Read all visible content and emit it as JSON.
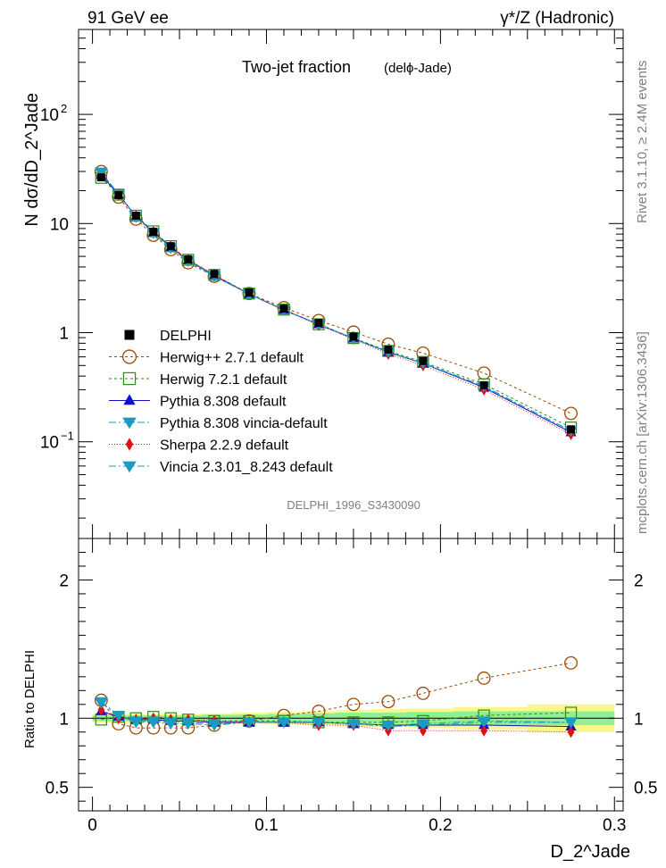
{
  "header": {
    "left_label": "91 GeV ee",
    "right_label": "γ*/Z (Hadronic)"
  },
  "side_labels": {
    "rivet": "Rivet 3.1.10, ≥ 2.4M events",
    "source": "mcplots.cern.ch [arXiv:1306.3436]"
  },
  "chart_data": {
    "type": "line",
    "title": "Two-jet fraction",
    "subtitle": "(delϕ-Jade)",
    "watermark": "DELPHI_1996_S3430090",
    "xlabel": "D_2^Jade",
    "ylabel": "N dσ/dD_2^Jade",
    "ratio_ylabel": "Ratio to DELPHI",
    "xlim": [
      -0.008,
      0.305
    ],
    "ylim": [
      0.013,
      600
    ],
    "yscale": "log",
    "ratio_ylim": [
      0.33,
      2.3
    ],
    "x_ticks": [
      "0",
      "0.1",
      "0.2",
      "0.3"
    ],
    "y_ticks": [
      "10^-1",
      "1",
      "10",
      "10^2"
    ],
    "ratio_ticks": [
      "0.5",
      "1",
      "2"
    ],
    "legend_position": "bottom-left",
    "x": [
      0.005,
      0.015,
      0.025,
      0.035,
      0.045,
      0.055,
      0.07,
      0.09,
      0.11,
      0.13,
      0.15,
      0.17,
      0.19,
      0.225,
      0.275
    ],
    "data": {
      "name": "DELPHI",
      "color": "#000000",
      "values": [
        26.5,
        18.2,
        11.8,
        8.4,
        6.2,
        4.7,
        3.45,
        2.33,
        1.66,
        1.23,
        0.92,
        0.7,
        0.55,
        0.33,
        0.13
      ],
      "band_stat": [
        0.02,
        0.02,
        0.02,
        0.02,
        0.02,
        0.02,
        0.025,
        0.025,
        0.03,
        0.035,
        0.04,
        0.04,
        0.045,
        0.05,
        0.05
      ],
      "band_total": [
        0.03,
        0.03,
        0.03,
        0.03,
        0.03,
        0.03,
        0.035,
        0.04,
        0.045,
        0.05,
        0.06,
        0.065,
        0.07,
        0.08,
        0.1
      ]
    },
    "series": [
      {
        "name": "Herwig++ 2.7.1 default",
        "color": "#9b4a08",
        "marker": "circle-open",
        "dash": "3,3",
        "ratio": [
          1.13,
          0.96,
          0.93,
          0.93,
          0.93,
          0.93,
          0.95,
          0.98,
          1.02,
          1.05,
          1.1,
          1.12,
          1.18,
          1.29,
          1.4
        ]
      },
      {
        "name": "Herwig 7.2.1 default",
        "color": "#2e8b14",
        "marker": "square-open",
        "dash": "3,3",
        "ratio": [
          0.99,
          1.01,
          1.0,
          1.01,
          1.0,
          0.99,
          0.98,
          0.98,
          0.98,
          0.97,
          0.97,
          0.97,
          0.98,
          1.02,
          1.04
        ]
      },
      {
        "name": "Pythia 8.308 default",
        "color": "#1010c8",
        "marker": "triangle-up",
        "dash": "",
        "ratio": [
          1.05,
          1.01,
          0.99,
          0.99,
          0.98,
          0.98,
          0.97,
          0.97,
          0.97,
          0.97,
          0.96,
          0.95,
          0.95,
          0.95,
          0.94
        ]
      },
      {
        "name": "Pythia 8.308 vincia-default",
        "color": "#1a9bc0",
        "marker": "triangle-down",
        "dash": "8,3,2,3",
        "ratio": [
          1.12,
          1.02,
          0.97,
          0.97,
          0.96,
          0.96,
          0.95,
          0.97,
          0.97,
          0.97,
          0.96,
          0.94,
          0.95,
          0.97,
          0.97
        ]
      },
      {
        "name": "Sherpa 2.2.9 default",
        "color": "#e01010",
        "marker": "diamond",
        "dash": "1,2",
        "ratio": [
          1.06,
          1.0,
          0.99,
          1.0,
          0.99,
          0.99,
          0.98,
          0.97,
          0.97,
          0.95,
          0.95,
          0.91,
          0.91,
          0.91,
          0.9
        ]
      },
      {
        "name": "Vincia 2.3.01_8.243 default",
        "color": "#1a9bc0",
        "marker": "triangle-down",
        "dash": "8,3,2,3",
        "ratio": [
          1.11,
          1.02,
          0.98,
          0.98,
          0.97,
          0.97,
          0.96,
          0.97,
          0.97,
          0.97,
          0.96,
          0.95,
          0.96,
          0.98,
          0.97
        ]
      }
    ]
  }
}
